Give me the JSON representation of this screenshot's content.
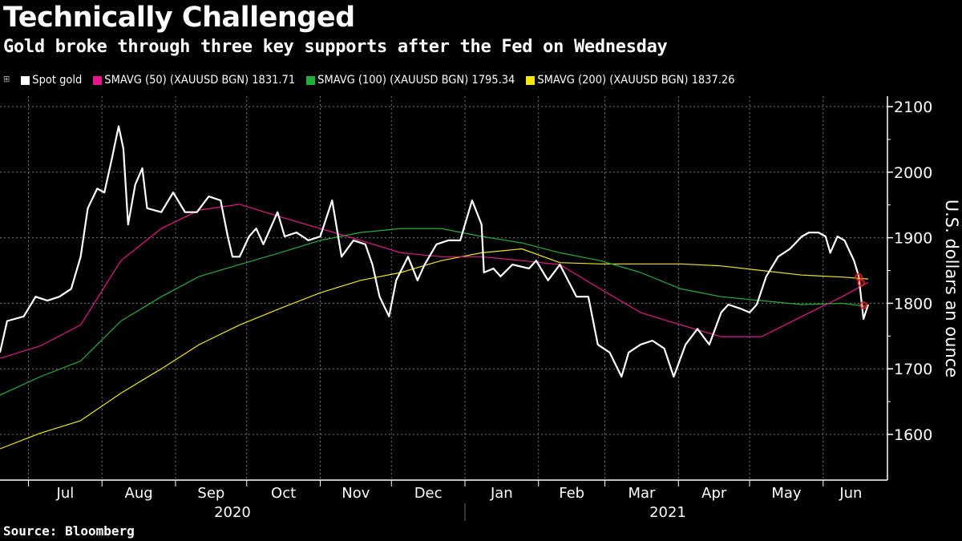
{
  "header": {
    "title": "Technically Challenged",
    "subtitle": "Gold broke through three key supports after the Fed on Wednesday"
  },
  "legend": [
    {
      "label": "Spot gold",
      "color": "#ffffff"
    },
    {
      "label": "SMAVG (50) (XAUUSD BGN) 1831.71",
      "color": "#e8168c"
    },
    {
      "label": "SMAVG (100) (XAUUSD BGN) 1795.34",
      "color": "#22b03c"
    },
    {
      "label": "SMAVG (200) (XAUUSD BGN) 1837.26",
      "color": "#f2e614"
    }
  ],
  "source": "Source: Bloomberg",
  "chart_data": {
    "type": "line",
    "title": "Technically Challenged",
    "subtitle": "Gold broke through three key supports after the Fed on Wednesday",
    "ylabel": "U.S. dollars an ounce",
    "ylim": [
      1540,
      2110
    ],
    "xlim": [
      "2020-06-19",
      "2021-06-21"
    ],
    "yticks": [
      1600,
      1700,
      1800,
      1900,
      2000,
      2100
    ],
    "y_axis_side": "right",
    "grid": true,
    "legend_placement": "top",
    "month_ticks": [
      {
        "label": "Jul",
        "start": "2020-07-01"
      },
      {
        "label": "Aug",
        "start": "2020-08-01"
      },
      {
        "label": "Sep",
        "start": "2020-09-01"
      },
      {
        "label": "Oct",
        "start": "2020-10-01"
      },
      {
        "label": "Nov",
        "start": "2020-11-01"
      },
      {
        "label": "Dec",
        "start": "2020-12-01"
      },
      {
        "label": "Jan",
        "start": "2021-01-01"
      },
      {
        "label": "Feb",
        "start": "2021-02-01"
      },
      {
        "label": "Mar",
        "start": "2021-03-01"
      },
      {
        "label": "Apr",
        "start": "2021-04-01"
      },
      {
        "label": "May",
        "start": "2021-05-01"
      },
      {
        "label": "Jun",
        "start": "2021-06-01"
      }
    ],
    "year_labels": [
      {
        "label": "2020",
        "from": "2020-06-19",
        "to": "2021-01-01"
      },
      {
        "label": "2021",
        "from": "2021-01-01",
        "to": "2021-06-21"
      }
    ],
    "series": [
      {
        "name": "Spot gold",
        "color": "#ffffff",
        "points": [
          [
            "2020-06-19",
            1725
          ],
          [
            "2020-06-22",
            1773
          ],
          [
            "2020-06-29",
            1780
          ],
          [
            "2020-07-04",
            1810
          ],
          [
            "2020-07-09",
            1804
          ],
          [
            "2020-07-14",
            1810
          ],
          [
            "2020-07-19",
            1822
          ],
          [
            "2020-07-23",
            1871
          ],
          [
            "2020-07-26",
            1945
          ],
          [
            "2020-07-30",
            1975
          ],
          [
            "2020-08-02",
            1969
          ],
          [
            "2020-08-05",
            2018
          ],
          [
            "2020-08-08",
            2070
          ],
          [
            "2020-08-10",
            2036
          ],
          [
            "2020-08-12",
            1920
          ],
          [
            "2020-08-15",
            1981
          ],
          [
            "2020-08-18",
            2006
          ],
          [
            "2020-08-20",
            1945
          ],
          [
            "2020-08-26",
            1939
          ],
          [
            "2020-08-31",
            1969
          ],
          [
            "2020-09-05",
            1939
          ],
          [
            "2020-09-10",
            1939
          ],
          [
            "2020-09-15",
            1963
          ],
          [
            "2020-09-20",
            1957
          ],
          [
            "2020-09-23",
            1902
          ],
          [
            "2020-09-25",
            1871
          ],
          [
            "2020-09-28",
            1871
          ],
          [
            "2020-10-02",
            1902
          ],
          [
            "2020-10-05",
            1914
          ],
          [
            "2020-10-08",
            1890
          ],
          [
            "2020-10-14",
            1939
          ],
          [
            "2020-10-17",
            1902
          ],
          [
            "2020-10-22",
            1908
          ],
          [
            "2020-10-27",
            1896
          ],
          [
            "2020-11-01",
            1902
          ],
          [
            "2020-11-06",
            1957
          ],
          [
            "2020-11-10",
            1871
          ],
          [
            "2020-11-15",
            1896
          ],
          [
            "2020-11-20",
            1890
          ],
          [
            "2020-11-23",
            1859
          ],
          [
            "2020-11-26",
            1810
          ],
          [
            "2020-11-30",
            1780
          ],
          [
            "2020-12-03",
            1835
          ],
          [
            "2020-12-08",
            1871
          ],
          [
            "2020-12-12",
            1835
          ],
          [
            "2020-12-15",
            1859
          ],
          [
            "2020-12-20",
            1890
          ],
          [
            "2020-12-25",
            1896
          ],
          [
            "2020-12-30",
            1896
          ],
          [
            "2021-01-04",
            1957
          ],
          [
            "2021-01-08",
            1920
          ],
          [
            "2021-01-09",
            1847
          ],
          [
            "2021-01-13",
            1853
          ],
          [
            "2021-01-16",
            1841
          ],
          [
            "2021-01-21",
            1859
          ],
          [
            "2021-01-28",
            1853
          ],
          [
            "2021-01-31",
            1865
          ],
          [
            "2021-02-05",
            1835
          ],
          [
            "2021-02-10",
            1859
          ],
          [
            "2021-02-17",
            1810
          ],
          [
            "2021-02-22",
            1810
          ],
          [
            "2021-02-26",
            1737
          ],
          [
            "2021-03-03",
            1725
          ],
          [
            "2021-03-08",
            1688
          ],
          [
            "2021-03-11",
            1725
          ],
          [
            "2021-03-16",
            1737
          ],
          [
            "2021-03-21",
            1743
          ],
          [
            "2021-03-26",
            1731
          ],
          [
            "2021-03-30",
            1688
          ],
          [
            "2021-04-04",
            1737
          ],
          [
            "2021-04-09",
            1761
          ],
          [
            "2021-04-14",
            1737
          ],
          [
            "2021-04-19",
            1786
          ],
          [
            "2021-04-22",
            1798
          ],
          [
            "2021-04-27",
            1792
          ],
          [
            "2021-05-01",
            1786
          ],
          [
            "2021-05-04",
            1798
          ],
          [
            "2021-05-08",
            1841
          ],
          [
            "2021-05-13",
            1871
          ],
          [
            "2021-05-18",
            1883
          ],
          [
            "2021-05-23",
            1902
          ],
          [
            "2021-05-26",
            1908
          ],
          [
            "2021-05-30",
            1908
          ],
          [
            "2021-06-02",
            1902
          ],
          [
            "2021-06-04",
            1877
          ],
          [
            "2021-06-07",
            1902
          ],
          [
            "2021-06-10",
            1896
          ],
          [
            "2021-06-14",
            1865
          ],
          [
            "2021-06-16",
            1841
          ],
          [
            "2021-06-18",
            1776
          ],
          [
            "2021-06-20",
            1798
          ]
        ]
      },
      {
        "name": "SMAVG (50) (XAUUSD BGN)",
        "color": "#e8168c",
        "last": 1831.71,
        "points": [
          [
            "2020-06-19",
            1716
          ],
          [
            "2020-07-06",
            1735
          ],
          [
            "2020-07-23",
            1767
          ],
          [
            "2020-08-09",
            1865
          ],
          [
            "2020-08-26",
            1914
          ],
          [
            "2020-09-11",
            1942
          ],
          [
            "2020-09-28",
            1951
          ],
          [
            "2020-10-15",
            1932
          ],
          [
            "2020-11-01",
            1914
          ],
          [
            "2020-11-18",
            1896
          ],
          [
            "2020-12-05",
            1877
          ],
          [
            "2020-12-22",
            1871
          ],
          [
            "2021-01-08",
            1871
          ],
          [
            "2021-01-25",
            1865
          ],
          [
            "2021-02-10",
            1859
          ],
          [
            "2021-02-27",
            1822
          ],
          [
            "2021-03-16",
            1786
          ],
          [
            "2021-04-02",
            1767
          ],
          [
            "2021-04-19",
            1749
          ],
          [
            "2021-05-06",
            1749
          ],
          [
            "2021-05-23",
            1780
          ],
          [
            "2021-06-09",
            1810
          ],
          [
            "2021-06-20",
            1832
          ]
        ]
      },
      {
        "name": "SMAVG (100) (XAUUSD BGN)",
        "color": "#22b03c",
        "last": 1795.34,
        "points": [
          [
            "2020-06-19",
            1660
          ],
          [
            "2020-07-06",
            1688
          ],
          [
            "2020-07-23",
            1712
          ],
          [
            "2020-08-09",
            1773
          ],
          [
            "2020-08-26",
            1810
          ],
          [
            "2020-09-11",
            1841
          ],
          [
            "2020-09-28",
            1859
          ],
          [
            "2020-10-15",
            1877
          ],
          [
            "2020-11-01",
            1896
          ],
          [
            "2020-11-18",
            1908
          ],
          [
            "2020-12-05",
            1914
          ],
          [
            "2020-12-22",
            1914
          ],
          [
            "2021-01-08",
            1902
          ],
          [
            "2021-01-25",
            1892
          ],
          [
            "2021-02-10",
            1877
          ],
          [
            "2021-02-27",
            1865
          ],
          [
            "2021-03-16",
            1847
          ],
          [
            "2021-04-02",
            1822
          ],
          [
            "2021-04-19",
            1810
          ],
          [
            "2021-05-06",
            1804
          ],
          [
            "2021-05-23",
            1798
          ],
          [
            "2021-06-09",
            1800
          ],
          [
            "2021-06-20",
            1795
          ]
        ]
      },
      {
        "name": "SMAVG (200) (XAUUSD BGN)",
        "color": "#f2e614",
        "last": 1837.26,
        "points": [
          [
            "2020-06-19",
            1578
          ],
          [
            "2020-07-06",
            1602
          ],
          [
            "2020-07-23",
            1621
          ],
          [
            "2020-08-09",
            1663
          ],
          [
            "2020-08-26",
            1700
          ],
          [
            "2020-09-11",
            1737
          ],
          [
            "2020-09-28",
            1767
          ],
          [
            "2020-10-15",
            1792
          ],
          [
            "2020-11-01",
            1816
          ],
          [
            "2020-11-18",
            1835
          ],
          [
            "2020-12-05",
            1847
          ],
          [
            "2020-12-22",
            1865
          ],
          [
            "2021-01-08",
            1877
          ],
          [
            "2021-01-25",
            1883
          ],
          [
            "2021-02-10",
            1862
          ],
          [
            "2021-02-27",
            1860
          ],
          [
            "2021-03-16",
            1860
          ],
          [
            "2021-04-02",
            1860
          ],
          [
            "2021-04-19",
            1857
          ],
          [
            "2021-05-06",
            1850
          ],
          [
            "2021-05-23",
            1843
          ],
          [
            "2021-06-09",
            1840
          ],
          [
            "2021-06-20",
            1837
          ]
        ]
      }
    ],
    "annotations": [
      {
        "type": "circle",
        "date": "2021-06-16",
        "value": 1840,
        "color": "#e02020"
      },
      {
        "type": "circle",
        "date": "2021-06-17",
        "value": 1831,
        "color": "#e02020"
      },
      {
        "type": "circle",
        "date": "2021-06-18",
        "value": 1797,
        "color": "#e02020"
      }
    ]
  }
}
